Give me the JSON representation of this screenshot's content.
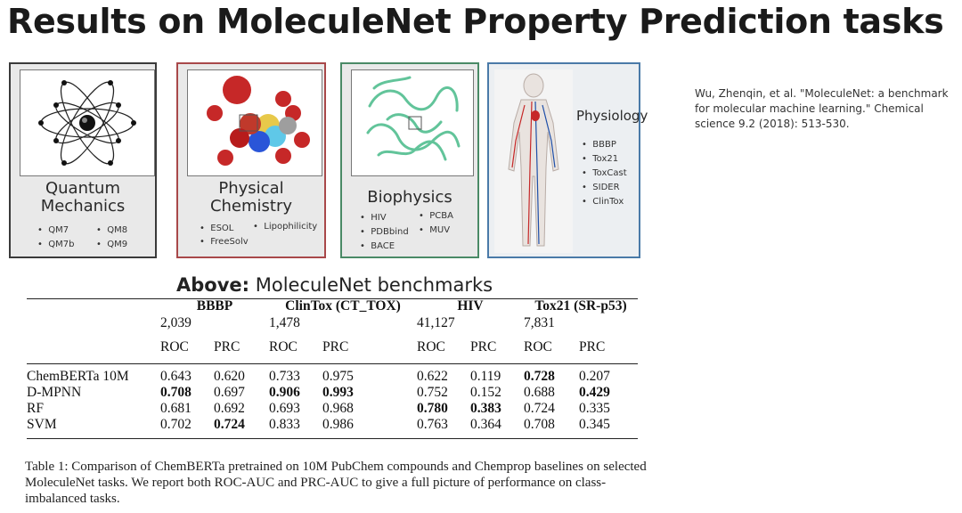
{
  "title": "Results on MoleculeNet Property Prediction tasks",
  "citation": "Wu, Zhenqin, et al. \"MoleculeNet: a benchmark for molecular machine learning.\" Chemical science 9.2 (2018): 513-530.",
  "panels": {
    "qm": {
      "title_line1": "Quantum",
      "title_line2": "Mechanics",
      "items": [
        "QM7",
        "QM8",
        "QM7b",
        "QM9"
      ]
    },
    "pc": {
      "title_line1": "Physical",
      "title_line2": "Chemistry",
      "items": [
        "ESOL",
        "Lipophilicity",
        "FreeSolv"
      ]
    },
    "bp": {
      "title": "Biophysics",
      "items": [
        "HIV",
        "PCBA",
        "PDBbind",
        "MUV",
        "BACE"
      ]
    },
    "ph": {
      "title": "Physiology",
      "items": [
        "BBBP",
        "Tox21",
        "ToxCast",
        "SIDER",
        "ClinTox"
      ]
    }
  },
  "above_bold": "Above:",
  "above_rest": " MoleculeNet benchmarks",
  "table": {
    "datasets": [
      {
        "name": "BBBP",
        "count": "2,039"
      },
      {
        "name": "ClinTox (CT_TOX)",
        "count": "1,478"
      },
      {
        "name": "HIV",
        "count": "41,127"
      },
      {
        "name": "Tox21 (SR-p53)",
        "count": "7,831"
      }
    ],
    "metric_roc": "ROC",
    "metric_prc": "PRC",
    "rows": [
      {
        "model": "ChemBERTa 10M",
        "values": [
          "0.643",
          "0.620",
          "0.733",
          "0.975",
          "0.622",
          "0.119",
          "0.728",
          "0.207"
        ]
      },
      {
        "model": "D-MPNN",
        "values": [
          "0.708",
          "0.697",
          "0.906",
          "0.993",
          "0.752",
          "0.152",
          "0.688",
          "0.429"
        ]
      },
      {
        "model": "RF",
        "values": [
          "0.681",
          "0.692",
          "0.693",
          "0.968",
          "0.780",
          "0.383",
          "0.724",
          "0.335"
        ]
      },
      {
        "model": "SVM",
        "values": [
          "0.702",
          "0.724",
          "0.833",
          "0.986",
          "0.763",
          "0.364",
          "0.708",
          "0.345"
        ]
      }
    ]
  },
  "table_caption": "Table 1: Comparison of ChemBERTa pretrained on 10M PubChem compounds and Chemprop baselines on selected MoleculeNet tasks. We report both ROC-AUC and PRC-AUC to give a full picture of performance on class-imbalanced tasks."
}
